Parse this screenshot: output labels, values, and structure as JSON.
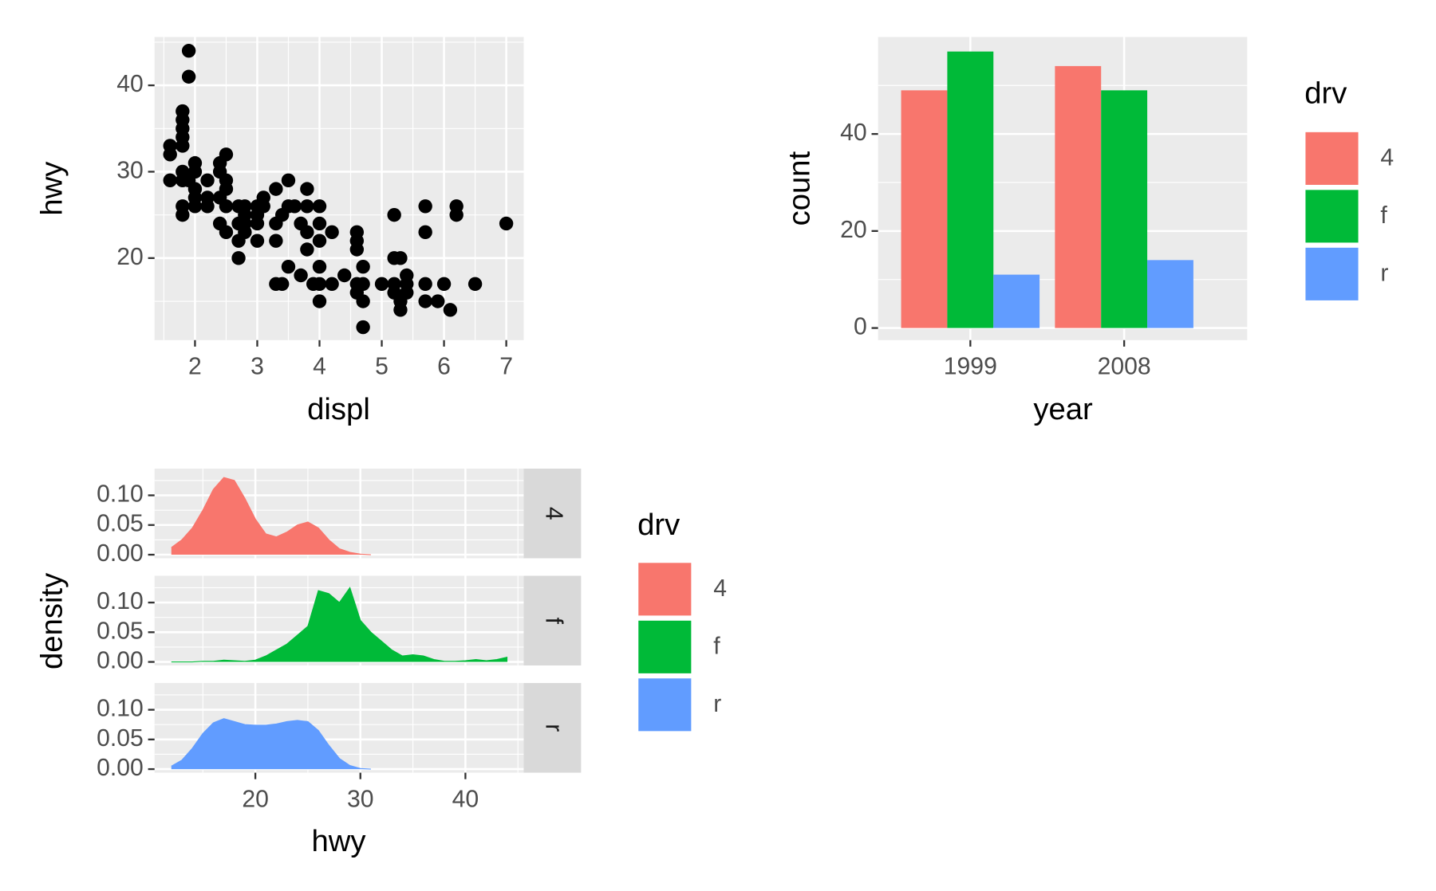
{
  "chart_data": [
    {
      "type": "scatter",
      "x_label": "displ",
      "y_label": "hwy",
      "color": "#000000",
      "x": [
        1.6,
        1.6,
        1.6,
        1.8,
        1.8,
        1.8,
        1.8,
        1.8,
        1.8,
        1.8,
        1.8,
        1.8,
        1.9,
        1.9,
        1.9,
        2.0,
        2.0,
        2.0,
        2.0,
        2.0,
        2.2,
        2.2,
        2.2,
        2.4,
        2.4,
        2.4,
        2.4,
        2.5,
        2.5,
        2.5,
        2.5,
        2.5,
        2.7,
        2.7,
        2.7,
        2.7,
        2.8,
        2.8,
        2.8,
        2.8,
        3.0,
        3.0,
        3.0,
        3.0,
        3.1,
        3.1,
        3.3,
        3.3,
        3.3,
        3.3,
        3.4,
        3.4,
        3.5,
        3.5,
        3.5,
        3.6,
        3.7,
        3.7,
        3.8,
        3.8,
        3.8,
        3.8,
        3.9,
        4.0,
        4.0,
        4.0,
        4.0,
        4.0,
        4.0,
        4.2,
        4.2,
        4.4,
        4.6,
        4.6,
        4.6,
        4.6,
        4.6,
        4.7,
        4.7,
        4.7,
        4.7,
        5.0,
        5.2,
        5.2,
        5.2,
        5.2,
        5.3,
        5.3,
        5.3,
        5.4,
        5.4,
        5.4,
        5.7,
        5.7,
        5.7,
        5.7,
        5.9,
        6.0,
        6.1,
        6.2,
        6.2,
        6.5,
        7.0
      ],
      "values": [
        33,
        32,
        29,
        29,
        26,
        25,
        37,
        35,
        34,
        33,
        36,
        30,
        44,
        41,
        29,
        31,
        30,
        28,
        26,
        27,
        29,
        27,
        26,
        31,
        30,
        27,
        24,
        32,
        29,
        28,
        26,
        23,
        26,
        24,
        22,
        20,
        26,
        25,
        24,
        23,
        26,
        25,
        24,
        22,
        27,
        26,
        28,
        24,
        22,
        17,
        25,
        17,
        29,
        26,
        19,
        26,
        24,
        18,
        28,
        26,
        23,
        21,
        17,
        26,
        24,
        22,
        19,
        17,
        15,
        23,
        17,
        18,
        23,
        22,
        21,
        17,
        16,
        19,
        17,
        15,
        12,
        17,
        25,
        20,
        17,
        16,
        20,
        15,
        14,
        18,
        17,
        16,
        26,
        23,
        17,
        15,
        15,
        17,
        14,
        26,
        25,
        17,
        24
      ],
      "xlim": [
        1.35,
        7.28
      ],
      "ylim": [
        10.5,
        45.6
      ],
      "xticks": [
        2,
        3,
        4,
        5,
        6,
        7
      ],
      "yticks": [
        20,
        30,
        40
      ],
      "grid": true
    },
    {
      "type": "bar",
      "x_label": "year",
      "y_label": "count",
      "legend_title": "drv",
      "categories": [
        "1999",
        "2008"
      ],
      "series": [
        {
          "name": "4",
          "color": "#F8766D",
          "values": [
            49,
            54
          ]
        },
        {
          "name": "f",
          "color": "#00BA38",
          "values": [
            57,
            49
          ]
        },
        {
          "name": "r",
          "color": "#619CFF",
          "values": [
            11,
            14
          ]
        }
      ],
      "ylim": [
        -2.5,
        60
      ],
      "yticks": [
        0,
        20,
        40
      ],
      "grid": true
    },
    {
      "type": "density",
      "x_label": "hwy",
      "y_label": "density",
      "legend_title": "drv",
      "series": [
        {
          "name": "4",
          "color": "#F8766D",
          "x": [
            12,
            13,
            14,
            15,
            16,
            17,
            18,
            19,
            20,
            21,
            22,
            23,
            24,
            25,
            26,
            27,
            28,
            29,
            30,
            31
          ],
          "values": [
            0.012,
            0.025,
            0.045,
            0.075,
            0.11,
            0.13,
            0.125,
            0.095,
            0.06,
            0.035,
            0.03,
            0.038,
            0.05,
            0.055,
            0.045,
            0.025,
            0.01,
            0.004,
            0.001,
            0
          ]
        },
        {
          "name": "f",
          "color": "#00BA38",
          "x": [
            12,
            13,
            14,
            15,
            16,
            17,
            18,
            19,
            20,
            21,
            22,
            23,
            24,
            25,
            26,
            27,
            28,
            29,
            30,
            31,
            32,
            33,
            34,
            35,
            36,
            37,
            38,
            39,
            40,
            41,
            42,
            43,
            44
          ],
          "values": [
            0,
            0,
            0,
            0.001,
            0.001,
            0.003,
            0.002,
            0.001,
            0.003,
            0.01,
            0.02,
            0.03,
            0.045,
            0.06,
            0.12,
            0.115,
            0.1,
            0.125,
            0.07,
            0.05,
            0.035,
            0.02,
            0.01,
            0.012,
            0.01,
            0.004,
            0.001,
            0.001,
            0.002,
            0.004,
            0.002,
            0.004,
            0.008
          ]
        },
        {
          "name": "r",
          "color": "#619CFF",
          "x": [
            12,
            13,
            14,
            15,
            16,
            17,
            18,
            19,
            20,
            21,
            22,
            23,
            24,
            25,
            26,
            27,
            28,
            29,
            30,
            31
          ],
          "values": [
            0.005,
            0.015,
            0.035,
            0.06,
            0.078,
            0.085,
            0.08,
            0.075,
            0.074,
            0.074,
            0.076,
            0.08,
            0.082,
            0.08,
            0.065,
            0.04,
            0.018,
            0.006,
            0.001,
            0
          ]
        }
      ],
      "xlim": [
        10.4,
        45.55
      ],
      "ylim": [
        -0.006,
        0.145
      ],
      "xticks": [
        20,
        30,
        40
      ],
      "yticks": [
        {
          "value": 0,
          "label": "0.00"
        },
        {
          "value": 0.05,
          "label": "0.05"
        },
        {
          "value": 0.1,
          "label": "0.10"
        }
      ],
      "grid": true
    }
  ]
}
